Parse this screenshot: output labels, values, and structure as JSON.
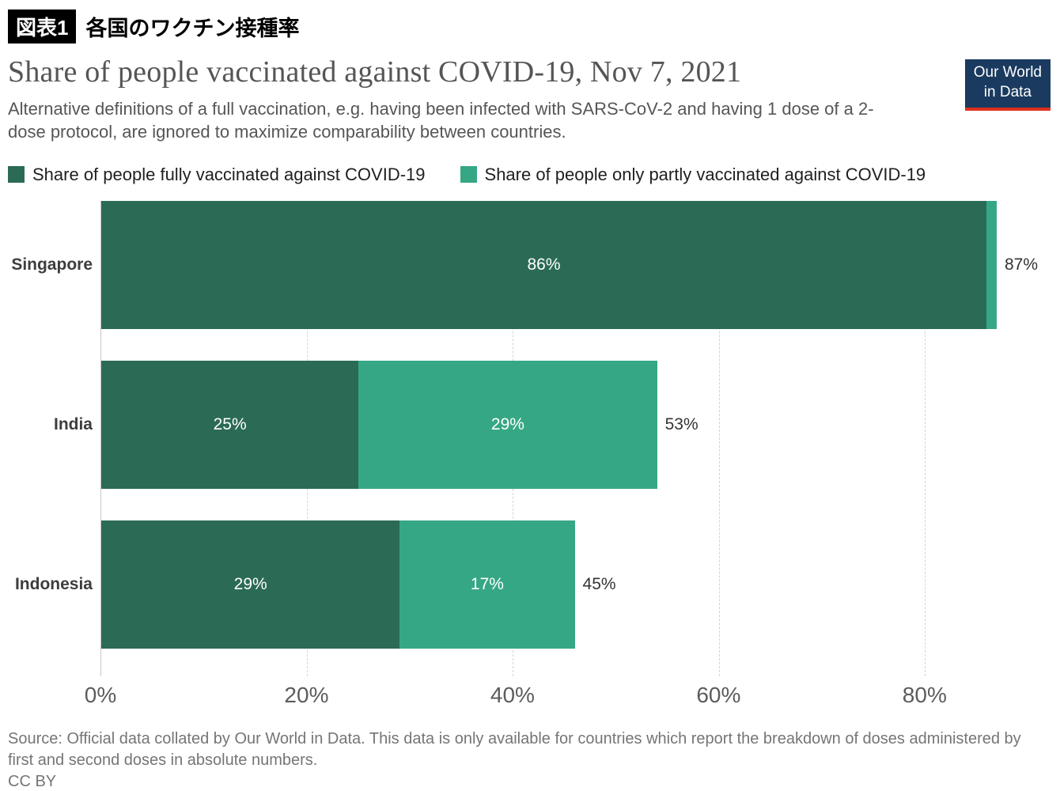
{
  "header": {
    "figure_tag": "図表1",
    "figure_title": "各国のワクチン接種率"
  },
  "title": "Share of people vaccinated against COVID-19, Nov 7, 2021",
  "subtitle": "Alternative definitions of a full vaccination, e.g. having been infected with SARS-CoV-2 and having 1 dose of a 2-dose protocol, are ignored to maximize comparability between countries.",
  "logo": {
    "line1": "Our World",
    "line2": "in Data",
    "bg_color": "#1a3a5f",
    "accent_color": "#e0301e"
  },
  "legend": [
    {
      "label": "Share of people fully vaccinated against COVID-19",
      "color": "#2b6b55"
    },
    {
      "label": "Share of people only partly vaccinated against COVID-19",
      "color": "#36a785"
    }
  ],
  "chart_data": {
    "type": "bar",
    "orientation": "horizontal",
    "title": "Share of people vaccinated against COVID-19, Nov 7, 2021",
    "categories": [
      "Singapore",
      "India",
      "Indonesia"
    ],
    "series": [
      {
        "name": "Share of people fully vaccinated against COVID-19",
        "color": "#2b6b55",
        "values": [
          86,
          25,
          29
        ]
      },
      {
        "name": "Share of people only partly vaccinated against COVID-19",
        "color": "#36a785",
        "values": [
          1,
          29,
          17
        ]
      }
    ],
    "segment_labels": [
      [
        "86%",
        ""
      ],
      [
        "25%",
        "29%"
      ],
      [
        "29%",
        "17%"
      ]
    ],
    "totals": [
      "87%",
      "53%",
      "45%"
    ],
    "x_ticks": [
      "0%",
      "20%",
      "40%",
      "60%",
      "80%"
    ],
    "x_tick_values": [
      0,
      20,
      40,
      60,
      80
    ],
    "xlim": [
      0,
      87
    ],
    "grid": "dashed-vertical",
    "legend_position": "top"
  },
  "footer": {
    "source": "Source: Official data collated by Our World in Data. This data is only available for countries which report the breakdown of doses administered by first and second doses in absolute numbers.",
    "license": "CC BY"
  }
}
